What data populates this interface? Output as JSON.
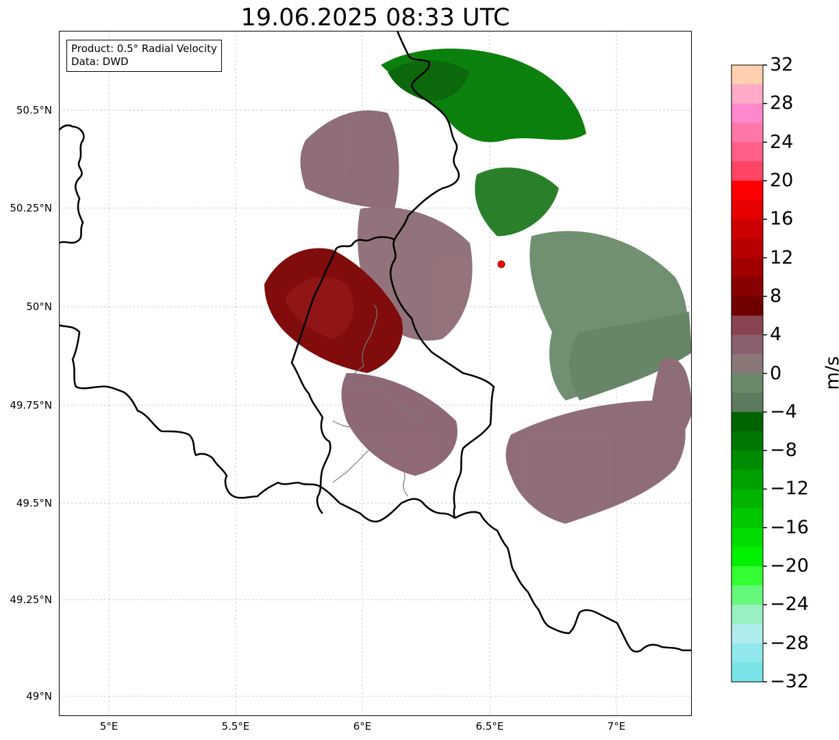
{
  "title": "19.06.2025 08:33 UTC",
  "info_box": {
    "product": "Product: 0.5° Radial Velocity",
    "source": "Data: DWD"
  },
  "axes": {
    "lat_labels": [
      "50.5°N",
      "50.25°N",
      "50°N",
      "49.75°N",
      "49.5°N",
      "49.25°N",
      "49°N"
    ],
    "lon_labels": [
      "5°E",
      "5.5°E",
      "6°E",
      "6.5°E",
      "7°E"
    ],
    "grid": true
  },
  "radar_site": {
    "lon": 6.55,
    "lat": 50.11,
    "color": "#ff0000"
  },
  "colorbar": {
    "unit": "m/s",
    "range": [
      -32,
      32
    ],
    "tick_labels": [
      "32",
      "28",
      "24",
      "20",
      "16",
      "12",
      "8",
      "4",
      "0",
      "−4",
      "−8",
      "−12",
      "−16",
      "−20",
      "−24",
      "−28",
      "−32"
    ],
    "colors_top_to_bottom": [
      "#ffd0b0",
      "#ffaac8",
      "#ff88cc",
      "#ff77a8",
      "#ff5f88",
      "#ff4466",
      "#ff0000",
      "#e60000",
      "#cc0000",
      "#b80000",
      "#a00000",
      "#880000",
      "#700000",
      "#884450",
      "#8a6070",
      "#8a7878",
      "#6a8a6a",
      "#5e7a5e",
      "#006400",
      "#007800",
      "#008c00",
      "#00a000",
      "#00b400",
      "#00c800",
      "#00dc00",
      "#00f000",
      "#33ff33",
      "#66f87a",
      "#99f0c0",
      "#b0ecec",
      "#90e8ec",
      "#78e4e8"
    ]
  }
}
